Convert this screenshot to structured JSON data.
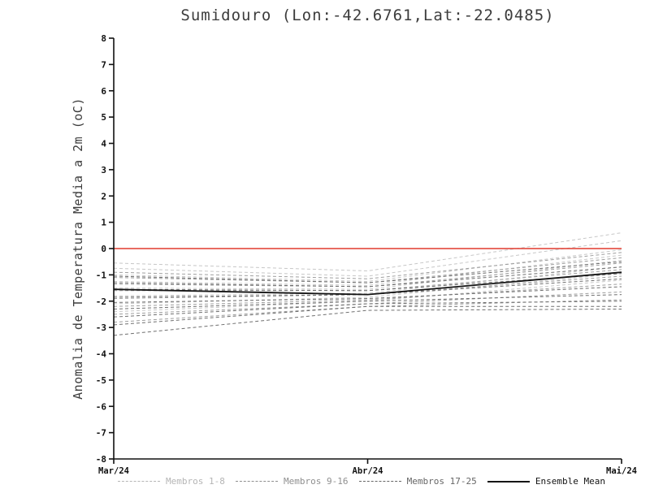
{
  "title": "Sumidouro (Lon:-42.6761,Lat:-22.0485)",
  "chart_data": {
    "type": "line",
    "title": "Sumidouro (Lon:-42.6761,Lat:-22.0485)",
    "xlabel": "",
    "ylabel": "Anomalia de Temperatura Media a 2m (oC)",
    "ylim": [
      -8,
      8
    ],
    "ytick_step": 1,
    "x_ticklabels": [
      "Mar/24",
      "Abr/24",
      "Mai/24"
    ],
    "grid": false,
    "legend_position": "bottom",
    "zero_line": {
      "value": 0,
      "color": "#e03a2f"
    },
    "groups": [
      {
        "name": "Membros 1-8",
        "color": "#c7c7c7",
        "style": "dashed",
        "members": [
          [
            -0.55,
            -0.85,
            0.6
          ],
          [
            -0.75,
            -1.05,
            0.3
          ],
          [
            -1.0,
            -1.25,
            -0.05
          ],
          [
            -1.25,
            -1.4,
            -0.25
          ],
          [
            -1.5,
            -1.55,
            -0.45
          ],
          [
            -1.8,
            -1.7,
            -0.7
          ],
          [
            -2.1,
            -1.85,
            -0.95
          ],
          [
            -2.4,
            -2.0,
            -1.2
          ]
        ]
      },
      {
        "name": "Membros 9-16",
        "color": "#9e9e9e",
        "style": "dashed",
        "members": [
          [
            -0.9,
            -1.15,
            -0.15
          ],
          [
            -1.1,
            -1.3,
            -0.35
          ],
          [
            -1.35,
            -1.45,
            -0.55
          ],
          [
            -1.6,
            -1.6,
            -0.8
          ],
          [
            -1.9,
            -1.75,
            -1.05
          ],
          [
            -2.2,
            -1.95,
            -1.35
          ],
          [
            -2.5,
            -2.1,
            -1.65
          ],
          [
            -2.8,
            -2.2,
            -1.95
          ]
        ]
      },
      {
        "name": "Membros 17-25",
        "color": "#6f6f6f",
        "style": "dashed",
        "members": [
          [
            -1.05,
            -1.3,
            -0.5
          ],
          [
            -1.3,
            -1.45,
            -0.7
          ],
          [
            -1.55,
            -1.6,
            -0.95
          ],
          [
            -1.85,
            -1.75,
            -1.15
          ],
          [
            -2.05,
            -1.9,
            -1.45
          ],
          [
            -2.3,
            -2.0,
            -1.75
          ],
          [
            -2.6,
            -2.1,
            -2.0
          ],
          [
            -2.9,
            -2.2,
            -2.2
          ],
          [
            -3.3,
            -2.35,
            -2.3
          ]
        ]
      }
    ],
    "ensemble_mean": {
      "name": "Ensemble Mean",
      "color": "#151515",
      "style": "solid",
      "values": [
        -1.55,
        -1.75,
        -0.9
      ]
    },
    "legend": [
      {
        "label": "Membros 1-8",
        "style": "dashed",
        "color": "#b5b5b5"
      },
      {
        "label": "Membros 9-16",
        "style": "dashed",
        "color": "#8f8f8f"
      },
      {
        "label": "Membros 17-25",
        "style": "dashed",
        "color": "#666666"
      },
      {
        "label": "Ensemble Mean",
        "style": "solid",
        "color": "#151515"
      }
    ]
  }
}
